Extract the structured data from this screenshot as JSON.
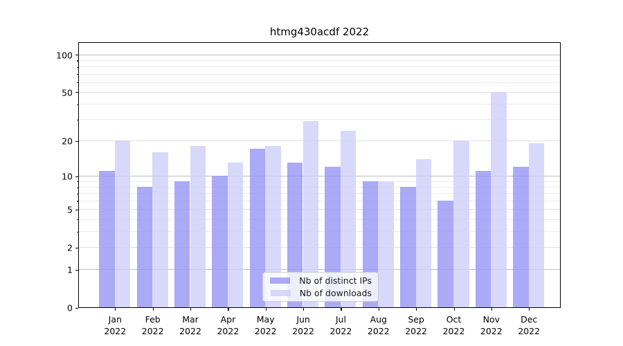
{
  "title": "htmg430acdf 2022",
  "chart_data": {
    "type": "bar",
    "title": "htmg430acdf 2022",
    "scale": "log1p",
    "grid": true,
    "legend_position": "lower center",
    "categories": [
      "Jan 2022",
      "Feb 2022",
      "Mar 2022",
      "Apr 2022",
      "May 2022",
      "Jun 2022",
      "Jul 2022",
      "Aug 2022",
      "Sep 2022",
      "Oct 2022",
      "Nov 2022",
      "Dec 2022"
    ],
    "series": [
      {
        "name": "Nb of distinct IPs",
        "color": "#9797f4",
        "values": [
          11,
          8,
          9,
          10,
          17,
          13,
          12,
          9,
          8,
          6,
          11,
          12
        ]
      },
      {
        "name": "Nb of downloads",
        "color": "#cfcff9",
        "values": [
          20,
          16,
          18,
          13,
          18,
          29,
          24,
          9,
          14,
          20,
          50,
          19
        ]
      }
    ],
    "ylim": [
      0,
      126
    ],
    "y_ticks_labeled": [
      0,
      1,
      2,
      5,
      10,
      20,
      50,
      100
    ],
    "y_gridlines_major": [
      1,
      10,
      100
    ],
    "y_gridlines_mid": [
      2,
      5,
      20,
      50
    ],
    "y_gridlines_minor": [
      3,
      4,
      6,
      7,
      8,
      9,
      30,
      40,
      60,
      70,
      80,
      90
    ]
  },
  "colors": {
    "axis": "#000000",
    "grid_major": "#c0c0c0",
    "grid_mid": "#e0e0e0",
    "grid_minor": "#ececec",
    "background": "#ffffff"
  }
}
